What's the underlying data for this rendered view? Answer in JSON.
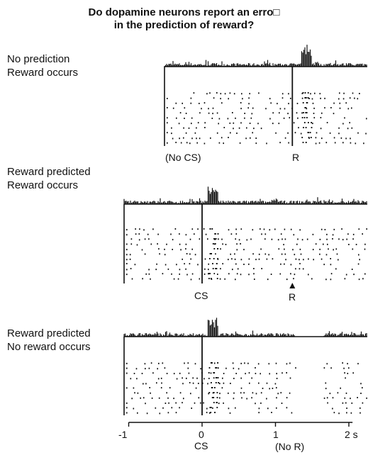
{
  "title_line1": "Do dopamine neurons report an erro□",
  "title_line2": "in the prediction of reward?",
  "panels": [
    {
      "condition_line1": "No prediction",
      "condition_line2": "Reward occurs",
      "left_label": "(No CS)",
      "event_label": "R"
    },
    {
      "condition_line1": "Reward predicted",
      "condition_line2": "Reward occurs",
      "left_label": "CS",
      "event_label": "R"
    },
    {
      "condition_line1": "Reward predicted",
      "condition_line2": "No reward occurs",
      "left_label": "CS",
      "event_label": "(No R)"
    }
  ],
  "axis": {
    "ticks": [
      "-1",
      "0",
      "1",
      "2 s"
    ],
    "tick_values": [
      -1,
      0,
      1,
      2
    ],
    "range": [
      -1,
      2.05
    ]
  },
  "colors": {
    "ink": "#111111",
    "background": "#ffffff"
  }
}
